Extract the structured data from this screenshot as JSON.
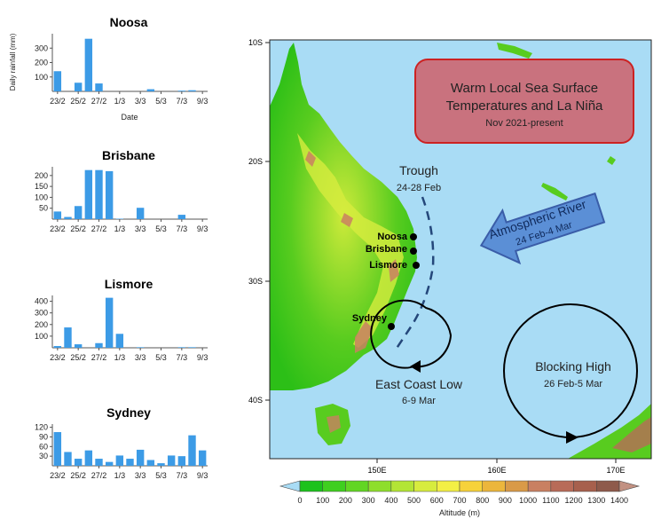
{
  "rain_ylabel": "Daily rainfall (mm)",
  "rain_xlabel": "Date",
  "x_tick_labels": [
    "23/2",
    "25/2",
    "27/2",
    "1/3",
    "3/3",
    "5/3",
    "7/3"
  ],
  "colors": {
    "bar": "#3c9be6",
    "ocean": "#a9dcf5",
    "callout_fill": "#c9727e",
    "callout_border": "#cc2222",
    "arrow_fill": "#5b8fd6",
    "arrow_border": "#3a5da8"
  },
  "chart_data": [
    {
      "type": "bar",
      "title": "Noosa",
      "ylabel": "Daily rainfall (mm)",
      "xlabel": "Date",
      "ylim": [
        0,
        400
      ],
      "yticks": [
        100,
        200,
        300
      ],
      "categories": [
        "23/2",
        "24/2",
        "25/2",
        "26/2",
        "27/2",
        "28/2",
        "1/3",
        "2/3",
        "3/3",
        "4/3",
        "5/3",
        "6/3",
        "7/3",
        "8/3",
        "9/3"
      ],
      "values": [
        140,
        0,
        60,
        365,
        55,
        0,
        0,
        0,
        0,
        15,
        0,
        0,
        5,
        8,
        0
      ]
    },
    {
      "type": "bar",
      "title": "Brisbane",
      "ylabel": "Daily rainfall (mm)",
      "xlabel": "",
      "ylim": [
        0,
        240
      ],
      "yticks": [
        50,
        100,
        150,
        200
      ],
      "categories": [
        "23/2",
        "24/2",
        "25/2",
        "26/2",
        "27/2",
        "28/2",
        "1/3",
        "2/3",
        "3/3",
        "4/3",
        "5/3",
        "6/3",
        "7/3",
        "8/3",
        "9/3"
      ],
      "values": [
        35,
        10,
        60,
        225,
        225,
        220,
        2,
        0,
        52,
        0,
        0,
        0,
        20,
        0,
        0
      ]
    },
    {
      "type": "bar",
      "title": "Lismore",
      "ylabel": "Daily rainfall (mm)",
      "xlabel": "",
      "ylim": [
        0,
        450
      ],
      "yticks": [
        100,
        200,
        300,
        400
      ],
      "categories": [
        "23/2",
        "24/2",
        "25/2",
        "26/2",
        "27/2",
        "28/2",
        "1/3",
        "2/3",
        "3/3",
        "4/3",
        "5/3",
        "6/3",
        "7/3",
        "8/3",
        "9/3"
      ],
      "values": [
        15,
        175,
        30,
        0,
        40,
        430,
        120,
        0,
        5,
        0,
        0,
        0,
        5,
        5,
        0
      ]
    },
    {
      "type": "bar",
      "title": "Sydney",
      "ylabel": "Daily rainfall (mm)",
      "xlabel": "",
      "ylim": [
        0,
        130
      ],
      "yticks": [
        30,
        60,
        90,
        120
      ],
      "categories": [
        "23/2",
        "24/2",
        "25/2",
        "26/2",
        "27/2",
        "28/2",
        "1/3",
        "2/3",
        "3/3",
        "4/3",
        "5/3",
        "6/3",
        "7/3",
        "8/3",
        "9/3"
      ],
      "values": [
        105,
        43,
        22,
        48,
        22,
        12,
        32,
        22,
        50,
        18,
        8,
        32,
        30,
        95,
        48
      ]
    }
  ],
  "map": {
    "lat_labels": [
      "10S",
      "20S",
      "30S",
      "40S"
    ],
    "lon_labels": [
      "150E",
      "160E",
      "170E"
    ],
    "city_labels": [
      "Noosa",
      "Brisbane",
      "Lismore",
      "Sydney"
    ],
    "callout": {
      "line1": "Warm Local Sea Surface",
      "line2": "Temperatures and La Niña",
      "line3": "Nov 2021-present"
    },
    "trough": {
      "title": "Trough",
      "dates": "24-28 Feb"
    },
    "atmospheric_river": {
      "title": "Atmospheric River",
      "dates": "24 Feb-4 Mar"
    },
    "east_coast_low": {
      "title": "East Coast Low",
      "dates": "6-9 Mar"
    },
    "blocking_high": {
      "title": "Blocking High",
      "dates": "26 Feb-5 Mar"
    }
  },
  "colorbar": {
    "label": "Altitude (m)",
    "ticks": [
      "0",
      "100",
      "200",
      "300",
      "400",
      "500",
      "600",
      "700",
      "800",
      "900",
      "1000",
      "1100",
      "1200",
      "1300",
      "1400"
    ],
    "colors": [
      "#a9dcf5",
      "#1cc21c",
      "#3fcf1f",
      "#62d623",
      "#8ede2c",
      "#b3e535",
      "#d7ec3e",
      "#f3ef45",
      "#f7d23a",
      "#ecb63c",
      "#d99a48",
      "#c98062",
      "#b86b58",
      "#a7604d",
      "#8e5a4b",
      "#c29182"
    ]
  }
}
